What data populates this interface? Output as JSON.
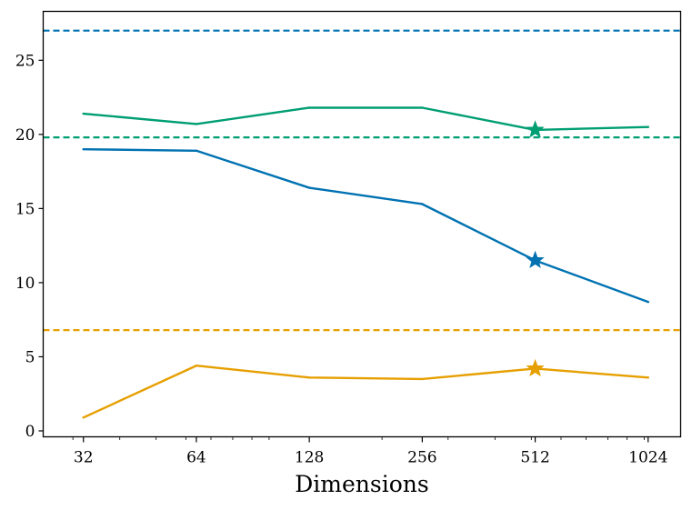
{
  "chart_data": {
    "type": "line",
    "title": "",
    "xlabel": "Dimensions",
    "ylabel": "",
    "x_scale": "log2",
    "x": [
      32,
      64,
      128,
      256,
      512,
      1024
    ],
    "x_tick_labels": [
      "32",
      "64",
      "128",
      "256",
      "512",
      "1024"
    ],
    "xlim": [
      25,
      1250
    ],
    "ylim": [
      -0.4,
      28.3
    ],
    "y_ticks": [
      0,
      5,
      10,
      15,
      20,
      25
    ],
    "y_tick_labels": [
      "0",
      "5",
      "10",
      "15",
      "20",
      "25"
    ],
    "grid": false,
    "series": [
      {
        "name": "blue",
        "color": "#0072b2",
        "values": [
          19.0,
          18.9,
          16.4,
          15.3,
          11.5,
          8.7
        ],
        "best_index": 4,
        "baseline": 27.0
      },
      {
        "name": "green",
        "color": "#009e73",
        "values": [
          21.4,
          20.7,
          21.8,
          21.8,
          20.3,
          20.5
        ],
        "best_index": 4,
        "baseline": 19.8
      },
      {
        "name": "orange",
        "color": "#e69f00",
        "values": [
          0.9,
          4.4,
          3.6,
          3.5,
          4.2,
          3.6
        ],
        "best_index": 4,
        "baseline": 6.8
      }
    ]
  }
}
